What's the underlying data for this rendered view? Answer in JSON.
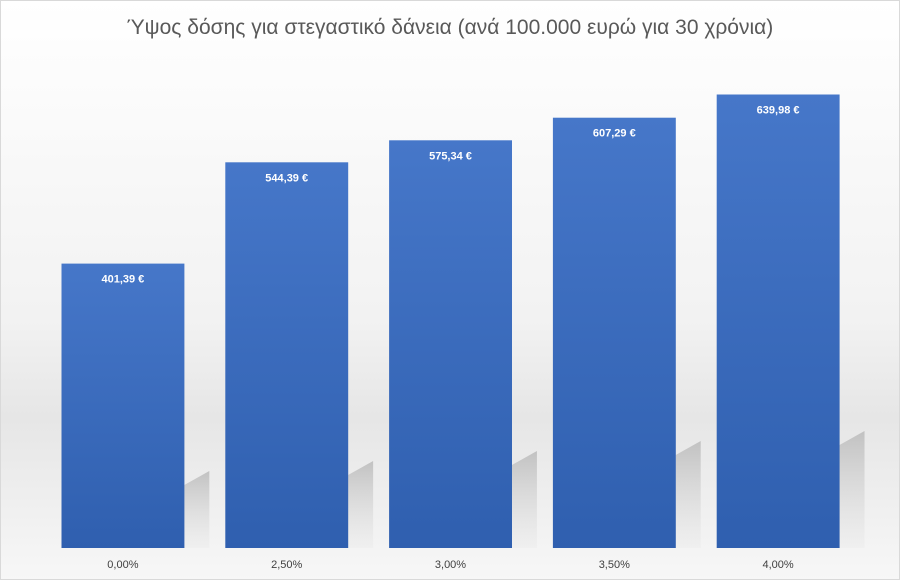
{
  "chart_data": {
    "type": "bar",
    "title": "Ύψος δόσης για στεγαστικό δάνεια (ανά 100.000 ευρώ για 30 χρόνια)",
    "categories": [
      "0,00%",
      "2,50%",
      "3,00%",
      "3,50%",
      "4,00%"
    ],
    "values": [
      401.39,
      544.39,
      575.34,
      607.29,
      639.98
    ],
    "data_labels": [
      "401,39 €",
      "544,39 €",
      "575,34 €",
      "607,29 €",
      "639,98 €"
    ],
    "xlabel": "",
    "ylabel": "",
    "ylim": [
      0,
      700
    ],
    "grid": false,
    "legend": "none",
    "colors": {
      "bar_top": "#4677C9",
      "bar_bottom": "#2F5FAF",
      "title": "#595959"
    }
  }
}
